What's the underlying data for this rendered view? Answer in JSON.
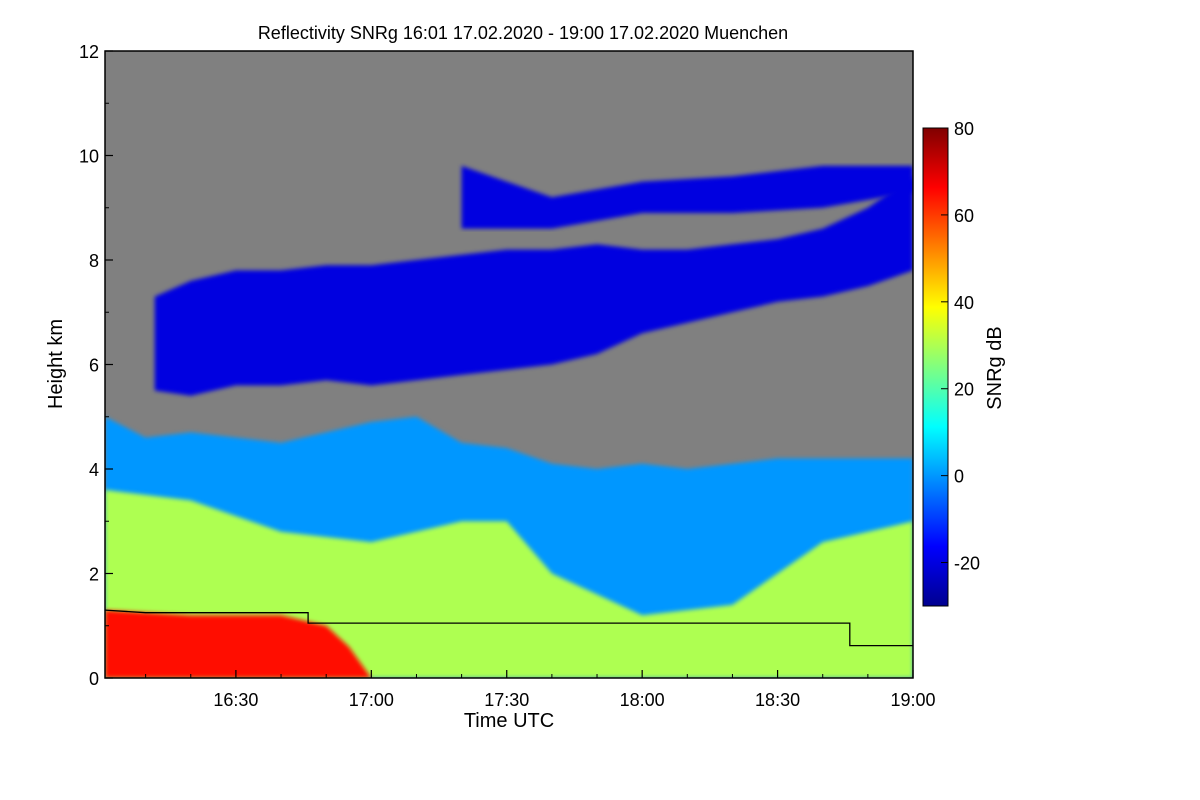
{
  "chart_data": {
    "type": "heatmap",
    "title": "Reflectivity SNRg   16:01 17.02.2020 - 19:00 17.02.2020 Muenchen",
    "xlabel": "Time UTC",
    "ylabel": "Height km",
    "xlim_minutes_utc": [
      961,
      1140
    ],
    "ylim": [
      0,
      12
    ],
    "x_ticks": [
      {
        "value": 990,
        "label": "16:30"
      },
      {
        "value": 1020,
        "label": "17:00"
      },
      {
        "value": 1050,
        "label": "17:30"
      },
      {
        "value": 1080,
        "label": "18:00"
      },
      {
        "value": 1110,
        "label": "18:30"
      },
      {
        "value": 1140,
        "label": "19:00"
      }
    ],
    "y_ticks": [
      0,
      2,
      4,
      6,
      8,
      10,
      12
    ],
    "colorbar": {
      "label": "SNRg dB",
      "range": [
        -30,
        80
      ],
      "ticks": [
        -20,
        0,
        20,
        40,
        60,
        80
      ],
      "colormap": [
        "#00008f",
        "#0000ff",
        "#0080ff",
        "#00ffff",
        "#80ff80",
        "#ffff00",
        "#ff8000",
        "#ff0000",
        "#800000"
      ]
    },
    "background_color": "#808080",
    "layers": [
      {
        "name": "upper cloud",
        "level": -20,
        "x": [
          972,
          980,
          990,
          1000,
          1010,
          1020,
          1030,
          1040,
          1050,
          1060,
          1070,
          1080,
          1090,
          1100,
          1110,
          1120,
          1130,
          1140
        ],
        "base": [
          5.5,
          5.4,
          5.6,
          5.6,
          5.7,
          5.6,
          5.7,
          5.8,
          5.9,
          6.0,
          6.2,
          6.6,
          6.8,
          7.0,
          7.2,
          7.3,
          7.5,
          7.8
        ],
        "top": [
          7.3,
          7.6,
          7.8,
          7.8,
          7.9,
          7.9,
          8.0,
          8.1,
          8.2,
          8.2,
          8.3,
          8.2,
          8.2,
          8.3,
          8.4,
          8.6,
          9.0,
          9.6
        ]
      },
      {
        "name": "cirrus top",
        "level": -20,
        "x": [
          1040,
          1060,
          1080,
          1100,
          1120,
          1140
        ],
        "base": [
          8.6,
          8.6,
          8.9,
          8.9,
          9.0,
          9.3
        ],
        "top": [
          9.8,
          9.2,
          9.5,
          9.6,
          9.8,
          9.8
        ]
      },
      {
        "name": "lower cloud",
        "level": 0,
        "x": [
          961,
          970,
          980,
          990,
          1000,
          1010,
          1020,
          1030,
          1040,
          1050,
          1060,
          1070,
          1080,
          1090,
          1100,
          1110,
          1120,
          1130,
          1140
        ],
        "base": [
          0,
          0,
          0,
          0,
          0,
          0,
          0,
          0,
          0,
          0,
          0,
          0,
          0,
          0,
          0,
          0,
          0,
          0,
          0
        ],
        "top": [
          5.0,
          4.6,
          4.7,
          4.6,
          4.5,
          4.7,
          4.9,
          5.0,
          4.5,
          4.4,
          4.1,
          4.0,
          4.1,
          4.0,
          4.1,
          4.2,
          4.2,
          4.2,
          4.2
        ]
      },
      {
        "name": "mid reflectivity",
        "level": 30,
        "x": [
          961,
          980,
          1000,
          1020,
          1040,
          1050,
          1060,
          1080,
          1100,
          1120,
          1140
        ],
        "base": [
          0,
          0,
          0,
          0,
          0,
          0,
          0,
          0,
          0,
          0,
          0
        ],
        "top": [
          3.6,
          3.4,
          2.8,
          2.6,
          3.0,
          3.0,
          2.0,
          1.2,
          1.4,
          2.6,
          3.0
        ]
      },
      {
        "name": "rain",
        "level": 65,
        "x": [
          961,
          980,
          1000,
          1010,
          1015,
          1020
        ],
        "base": [
          0,
          0,
          0,
          0,
          0,
          0
        ],
        "top": [
          1.3,
          1.2,
          1.2,
          1.0,
          0.6,
          0.0
        ]
      }
    ],
    "boundary_line": {
      "x": [
        961,
        970,
        985,
        1000,
        1006,
        1006,
        1020,
        1060,
        1100,
        1120,
        1120,
        1126,
        1126,
        1140
      ],
      "y": [
        1.3,
        1.25,
        1.25,
        1.25,
        1.25,
        1.05,
        1.05,
        1.05,
        1.05,
        1.05,
        1.05,
        1.05,
        0.62,
        0.62
      ]
    }
  }
}
